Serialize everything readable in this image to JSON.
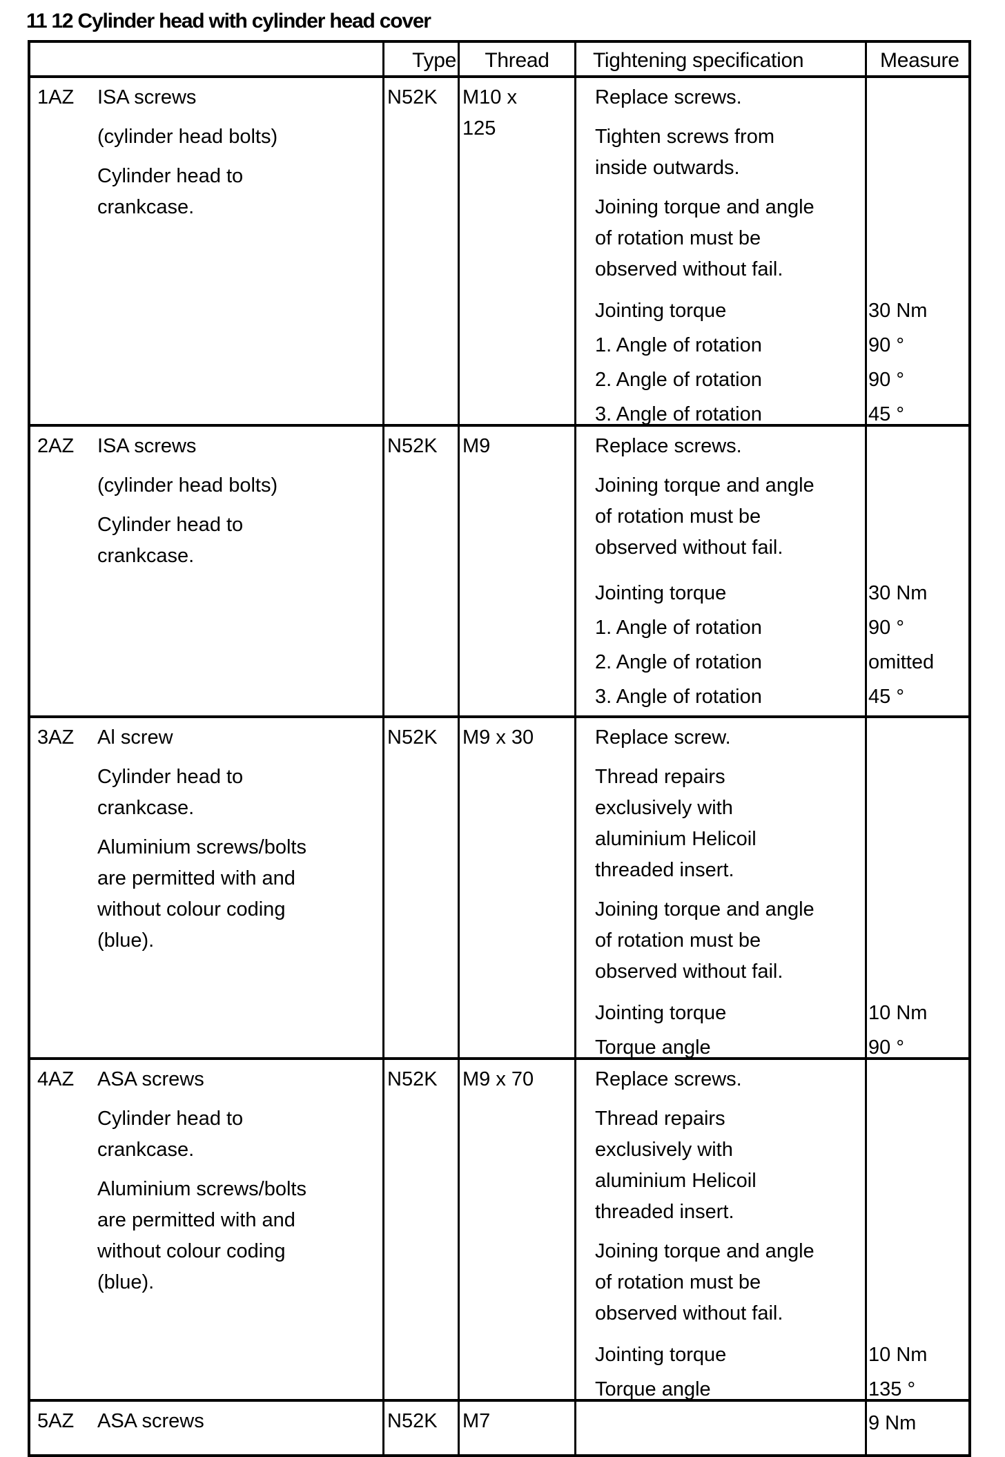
{
  "title": "11 12 Cylinder head with cylinder head cover",
  "header": {
    "col1": "",
    "type": "Type",
    "thread": "Thread",
    "spec": "Tightening specification",
    "measure": "Measure"
  },
  "rows": [
    {
      "id": "1AZ",
      "type": "N52K",
      "thread": [
        "M10 x",
        "125"
      ],
      "desc": [
        [
          "ISA screws"
        ],
        [
          "(cylinder head bolts)"
        ],
        [
          "Cylinder head to",
          "crankcase."
        ]
      ],
      "spec": [
        {
          "lines": [
            "Replace screws."
          ]
        },
        {
          "lines": [
            "Tighten screws from",
            "inside outwards."
          ]
        },
        {
          "lines": [
            "Joining torque and angle",
            "of rotation must be",
            "observed without fail."
          ]
        },
        {
          "lines": [
            "Jointing torque"
          ],
          "measure": "30 Nm"
        },
        {
          "lines": [
            "1. Angle of rotation"
          ],
          "measure": "90 °"
        },
        {
          "lines": [
            "2. Angle of rotation"
          ],
          "measure": "90 °"
        },
        {
          "lines": [
            "3. Angle of rotation"
          ],
          "measure": "45 °"
        }
      ]
    },
    {
      "id": "2AZ",
      "type": "N52K",
      "thread": [
        "M9"
      ],
      "desc": [
        [
          "ISA screws"
        ],
        [
          "(cylinder head bolts)"
        ],
        [
          "Cylinder head to",
          "crankcase."
        ]
      ],
      "spec": [
        {
          "lines": [
            "Replace screws."
          ]
        },
        {
          "lines": [
            "Joining torque and angle",
            "of rotation must be",
            "observed without fail."
          ]
        },
        {
          "lines": [
            "Jointing torque"
          ],
          "measure": "30 Nm"
        },
        {
          "lines": [
            "1. Angle of rotation"
          ],
          "measure": "90 °"
        },
        {
          "lines": [
            "2. Angle of rotation"
          ],
          "measure": "omitted"
        },
        {
          "lines": [
            "3. Angle of rotation"
          ],
          "measure": "45 °"
        }
      ]
    },
    {
      "id": "3AZ",
      "type": "N52K",
      "thread": [
        "M9 x 30"
      ],
      "desc": [
        [
          "Al screw"
        ],
        [
          "Cylinder head to",
          "crankcase."
        ],
        [
          "Aluminium screws/bolts",
          "are permitted with and",
          "without colour coding",
          "(blue)."
        ]
      ],
      "spec": [
        {
          "lines": [
            "Replace screw."
          ]
        },
        {
          "lines": [
            "Thread repairs",
            "exclusively with",
            "aluminium Helicoil",
            "threaded insert."
          ]
        },
        {
          "lines": [
            "Joining torque and angle",
            "of rotation must be",
            "observed without fail."
          ]
        },
        {
          "lines": [
            "Jointing torque"
          ],
          "measure": "10 Nm"
        },
        {
          "lines": [
            "Torque angle"
          ],
          "measure": "90 °"
        }
      ]
    },
    {
      "id": "4AZ",
      "type": "N52K",
      "thread": [
        "M9 x 70"
      ],
      "desc": [
        [
          "ASA screws"
        ],
        [
          "Cylinder head to",
          "crankcase."
        ],
        [
          "Aluminium screws/bolts",
          "are permitted with and",
          "without colour coding",
          "(blue)."
        ]
      ],
      "spec": [
        {
          "lines": [
            "Replace screws."
          ]
        },
        {
          "lines": [
            "Thread repairs",
            "exclusively with",
            "aluminium Helicoil",
            "threaded insert."
          ]
        },
        {
          "lines": [
            "Joining torque and angle",
            "of rotation must be",
            "observed without fail."
          ]
        },
        {
          "lines": [
            "Jointing torque"
          ],
          "measure": "10 Nm"
        },
        {
          "lines": [
            "Torque angle"
          ],
          "measure": "135 °"
        }
      ]
    },
    {
      "id": "5AZ",
      "type": "N52K",
      "thread": [
        "M7"
      ],
      "desc": [
        [
          "ASA screws"
        ]
      ],
      "spec": [
        {
          "lines": [
            ""
          ],
          "measure": "9 Nm"
        }
      ]
    }
  ]
}
